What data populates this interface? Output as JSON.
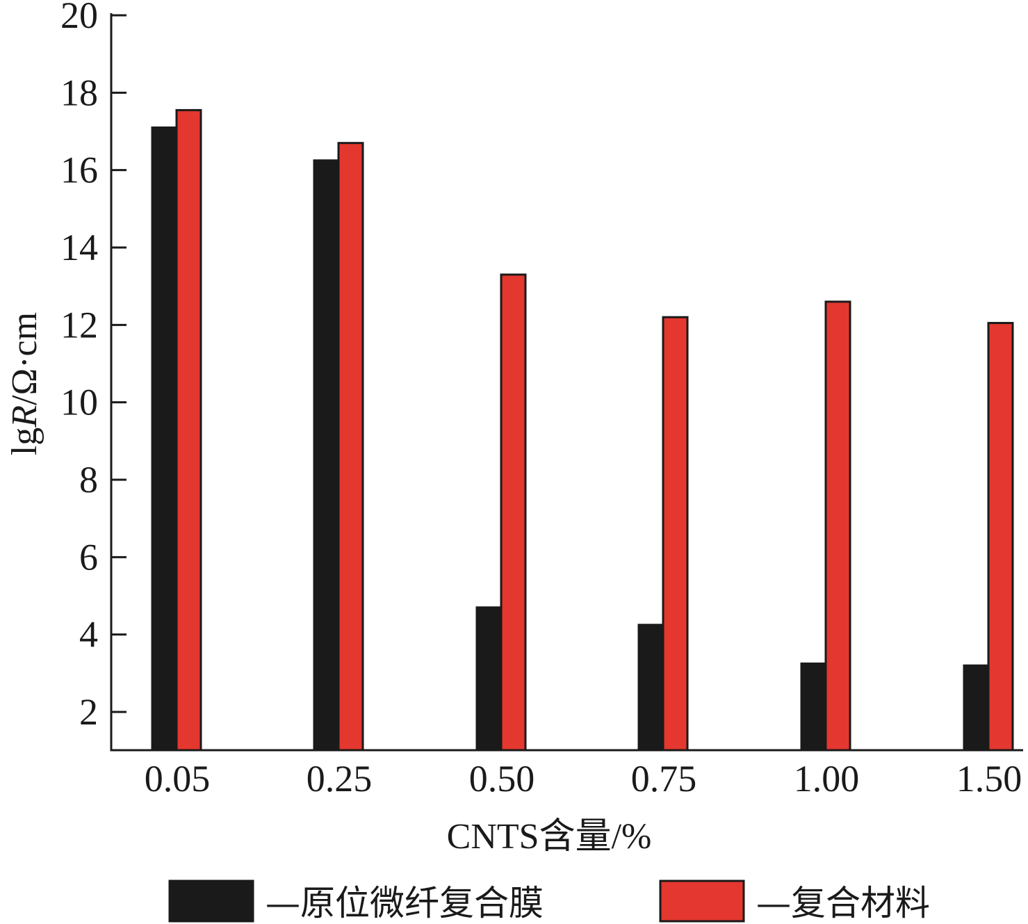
{
  "chart_data": {
    "type": "bar",
    "title": "",
    "xlabel": "CNTS含量/%",
    "ylabel": "lgR/Ω·cm",
    "categories": [
      "0.05",
      "0.25",
      "0.50",
      "0.75",
      "1.00",
      "1.50"
    ],
    "series": [
      {
        "name": "—原位微纤复合膜",
        "color": "#1a1a1a",
        "values": [
          17.1,
          16.25,
          4.7,
          4.25,
          3.25,
          3.2
        ]
      },
      {
        "name": "—复合材料",
        "color": "#e4372f",
        "values": [
          17.55,
          16.7,
          13.3,
          12.2,
          12.6,
          12.05
        ]
      }
    ],
    "ylim": [
      1,
      20
    ],
    "yticks": [
      2,
      4,
      6,
      8,
      10,
      12,
      14,
      16,
      18,
      20
    ],
    "grid": false,
    "legend": "bottom"
  },
  "ylabel_parts": {
    "prefix": "lg",
    "italic": "R",
    "suffix": "/Ω·cm"
  }
}
